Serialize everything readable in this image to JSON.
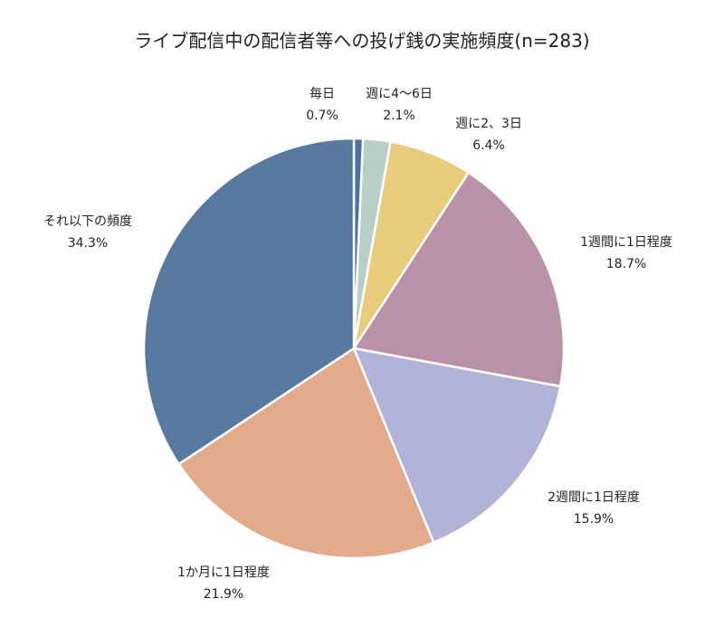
{
  "chart_data": {
    "type": "pie",
    "title": "ライブ配信中の配信者等への投げ銭の実施頻度(n=283)",
    "start_angle_deg": 0,
    "direction": "clockwise",
    "slices": [
      {
        "label": "毎日",
        "value_text": "0.7%",
        "value": 0.7,
        "color": "#4a72a6"
      },
      {
        "label": "週に4～6日",
        "value_text": "2.1%",
        "value": 2.1,
        "color": "#b7cfc6"
      },
      {
        "label": "週に2、3日",
        "value_text": "6.4%",
        "value": 6.4,
        "color": "#e8cb7b"
      },
      {
        "label": "1週間に1日程度",
        "value_text": "18.7%",
        "value": 18.7,
        "color": "#b893a8"
      },
      {
        "label": "2週間に1日程度",
        "value_text": "15.9%",
        "value": 15.9,
        "color": "#b1b3d9"
      },
      {
        "label": "1か月に1日程度",
        "value_text": "21.9%",
        "value": 21.9,
        "color": "#e3ab8b"
      },
      {
        "label": "それ以下の頻度",
        "value_text": "34.3%",
        "value": 34.3,
        "color": "#587aa0"
      }
    ]
  }
}
